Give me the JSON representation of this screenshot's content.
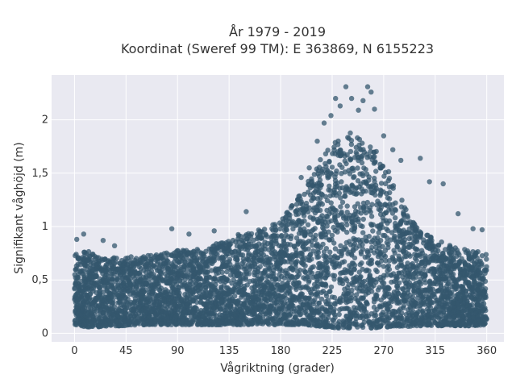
{
  "chart_data": {
    "type": "scatter",
    "title_line1": "År 1979 - 2019",
    "title_line2": "Koordinat (Sweref 99 TM): E 363869, N 6155223",
    "xlabel": "Vågriktning (grader)",
    "ylabel": "Signifikant våghöjd (m)",
    "xlim": [
      -20,
      375
    ],
    "ylim": [
      -0.08,
      2.42
    ],
    "x_ticks": [
      0,
      45,
      90,
      135,
      180,
      225,
      270,
      315,
      360
    ],
    "x_tick_labels": [
      "0",
      "45",
      "90",
      "135",
      "180",
      "225",
      "270",
      "315",
      "360"
    ],
    "y_ticks": [
      0,
      0.5,
      1,
      1.5,
      2
    ],
    "y_tick_labels": [
      "0",
      "0,5",
      "1",
      "1,5",
      "2"
    ],
    "grid": true,
    "background": "#e9e9f1",
    "marker_color": "#34576e",
    "envelope": {
      "x": [
        0,
        10,
        20,
        30,
        45,
        60,
        75,
        90,
        105,
        120,
        135,
        150,
        165,
        180,
        190,
        200,
        210,
        220,
        230,
        240,
        250,
        260,
        270,
        280,
        290,
        300,
        315,
        330,
        345,
        360
      ],
      "y_low": [
        0.08,
        0.06,
        0.06,
        0.07,
        0.07,
        0.08,
        0.08,
        0.08,
        0.08,
        0.08,
        0.08,
        0.08,
        0.08,
        0.08,
        0.08,
        0.08,
        0.07,
        0.06,
        0.05,
        0.05,
        0.05,
        0.05,
        0.06,
        0.06,
        0.06,
        0.07,
        0.07,
        0.07,
        0.07,
        0.08
      ],
      "y_high": [
        0.75,
        0.78,
        0.72,
        0.72,
        0.72,
        0.72,
        0.75,
        0.78,
        0.78,
        0.82,
        0.9,
        0.95,
        0.98,
        1.05,
        1.2,
        1.35,
        1.55,
        1.72,
        1.82,
        1.88,
        1.85,
        1.75,
        1.62,
        1.4,
        1.15,
        0.98,
        0.88,
        0.82,
        0.78,
        0.75
      ]
    },
    "outliers": [
      {
        "x": 2,
        "y": 0.88
      },
      {
        "x": 8,
        "y": 0.93
      },
      {
        "x": 25,
        "y": 0.87
      },
      {
        "x": 35,
        "y": 0.82
      },
      {
        "x": 85,
        "y": 0.98
      },
      {
        "x": 100,
        "y": 0.93
      },
      {
        "x": 122,
        "y": 0.96
      },
      {
        "x": 150,
        "y": 1.14
      },
      {
        "x": 175,
        "y": 1.02
      },
      {
        "x": 198,
        "y": 1.46
      },
      {
        "x": 205,
        "y": 1.55
      },
      {
        "x": 212,
        "y": 1.8
      },
      {
        "x": 218,
        "y": 1.97
      },
      {
        "x": 224,
        "y": 2.04
      },
      {
        "x": 228,
        "y": 2.2
      },
      {
        "x": 232,
        "y": 2.13
      },
      {
        "x": 237,
        "y": 2.31
      },
      {
        "x": 242,
        "y": 2.2
      },
      {
        "x": 248,
        "y": 2.09
      },
      {
        "x": 252,
        "y": 2.18
      },
      {
        "x": 256,
        "y": 2.31
      },
      {
        "x": 259,
        "y": 2.26
      },
      {
        "x": 262,
        "y": 2.1
      },
      {
        "x": 270,
        "y": 1.85
      },
      {
        "x": 278,
        "y": 1.72
      },
      {
        "x": 285,
        "y": 1.62
      },
      {
        "x": 302,
        "y": 1.64
      },
      {
        "x": 310,
        "y": 1.42
      },
      {
        "x": 322,
        "y": 1.4
      },
      {
        "x": 335,
        "y": 1.12
      },
      {
        "x": 348,
        "y": 0.98
      },
      {
        "x": 356,
        "y": 0.97
      }
    ]
  }
}
